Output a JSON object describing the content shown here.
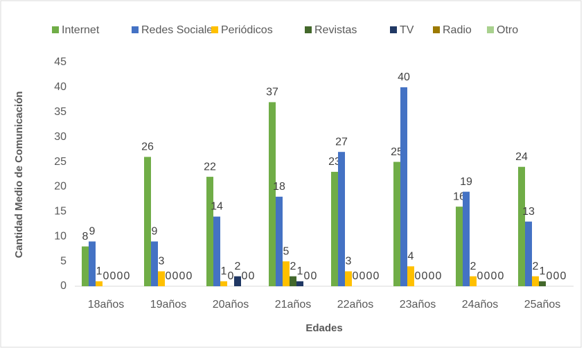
{
  "chart_data": {
    "type": "bar",
    "xlabel": "Edades",
    "ylabel": "Cantidad Medio de Comunicación",
    "categories": [
      "18años",
      "19años",
      "20años",
      "21años",
      "22años",
      "23años",
      "24años",
      "25años"
    ],
    "series": [
      {
        "name": "Internet",
        "color": "#70ad47",
        "values": [
          8,
          26,
          22,
          37,
          23,
          25,
          16,
          24
        ]
      },
      {
        "name": "Redes Sociales",
        "color": "#4472c4",
        "values": [
          9,
          9,
          14,
          18,
          27,
          40,
          19,
          13
        ]
      },
      {
        "name": "Periódicos",
        "color": "#ffc000",
        "values": [
          1,
          3,
          1,
          5,
          3,
          4,
          2,
          2
        ]
      },
      {
        "name": "Revistas",
        "color": "#43682b",
        "values": [
          0,
          0,
          0,
          2,
          0,
          0,
          0,
          1
        ]
      },
      {
        "name": "TV",
        "color": "#203864",
        "values": [
          0,
          0,
          2,
          1,
          0,
          0,
          0,
          0
        ]
      },
      {
        "name": "Radio",
        "color": "#9c7a00",
        "values": [
          0,
          0,
          0,
          0,
          0,
          0,
          0,
          0
        ]
      },
      {
        "name": "Otro",
        "color": "#a9d18e",
        "values": [
          0,
          0,
          0,
          0,
          0,
          0,
          0,
          0
        ]
      }
    ],
    "ylim": [
      0,
      45
    ],
    "yticks": [
      0,
      5,
      10,
      15,
      20,
      25,
      30,
      35,
      40,
      45
    ],
    "grid": false,
    "legend": "top"
  }
}
